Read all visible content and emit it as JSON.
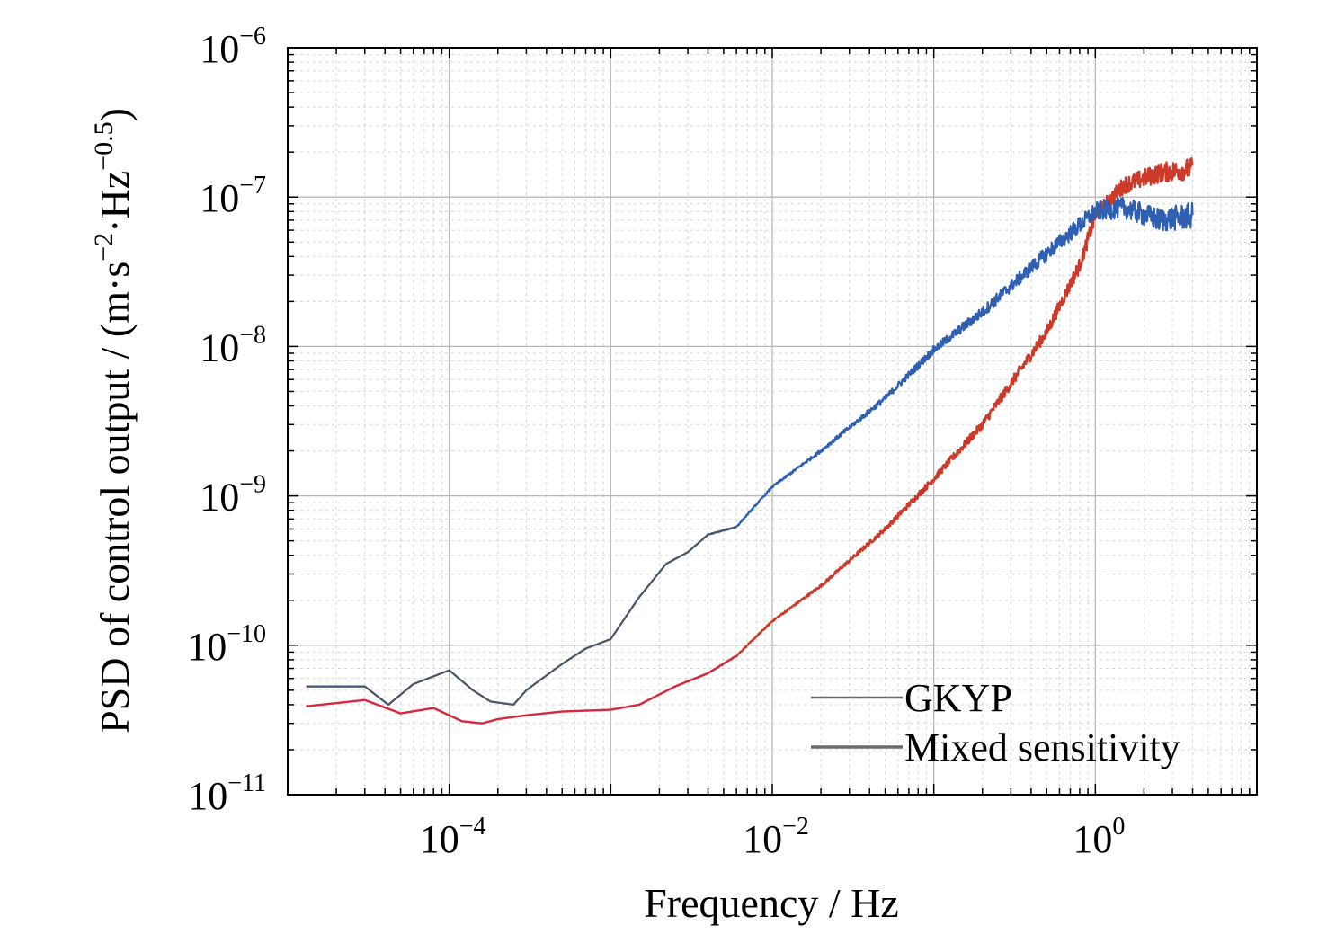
{
  "chart_data": {
    "type": "line",
    "title": "",
    "xlabel": "Frequency / Hz",
    "ylabel": "PSD of control output / (m·s⁻²·Hz⁻⁰·⁵)",
    "ylabel_parts": {
      "main": "PSD of control output / (m·s",
      "exp1": "−2",
      "mid": "·Hz",
      "exp2": "−0.5",
      "end": ")"
    },
    "xscale": "log",
    "yscale": "log",
    "xlim": [
      1e-05,
      10.0
    ],
    "ylim": [
      1e-11,
      1e-06
    ],
    "grid": true,
    "legend_position": "bottom-right",
    "x_ticks": [
      {
        "base": "10",
        "exp": "−4",
        "value": 0.0001
      },
      {
        "base": "10",
        "exp": "−2",
        "value": 0.01
      },
      {
        "base": "10",
        "exp": "0",
        "value": 1
      }
    ],
    "y_ticks": [
      {
        "base": "10",
        "exp": "−11",
        "value": 1e-11
      },
      {
        "base": "10",
        "exp": "−10",
        "value": 1e-10
      },
      {
        "base": "10",
        "exp": "−9",
        "value": 1e-09
      },
      {
        "base": "10",
        "exp": "−8",
        "value": 1e-08
      },
      {
        "base": "10",
        "exp": "−7",
        "value": 1e-07
      },
      {
        "base": "10",
        "exp": "−6",
        "value": 1e-06
      }
    ],
    "series": [
      {
        "name": "GKYP",
        "color": "#2f5fb0",
        "noise_decades": 0.22,
        "points": [
          [
            1.3e-05,
            5.3e-11
          ],
          [
            3e-05,
            5.3e-11
          ],
          [
            4.2e-05,
            4e-11
          ],
          [
            6e-05,
            5.5e-11
          ],
          [
            0.0001,
            6.8e-11
          ],
          [
            0.00014,
            5e-11
          ],
          [
            0.00018,
            4.2e-11
          ],
          [
            0.00025,
            4e-11
          ],
          [
            0.0003,
            5e-11
          ],
          [
            0.0005,
            7.5e-11
          ],
          [
            0.0007,
            9.5e-11
          ],
          [
            0.001,
            1.1e-10
          ],
          [
            0.0015,
            2.1e-10
          ],
          [
            0.0022,
            3.5e-10
          ],
          [
            0.003,
            4.2e-10
          ],
          [
            0.004,
            5.5e-10
          ],
          [
            0.006,
            6.2e-10
          ],
          [
            0.008,
            8.8e-10
          ],
          [
            0.01,
            1.15e-09
          ],
          [
            0.02,
            2e-09
          ],
          [
            0.05,
            4.5e-09
          ],
          [
            0.1,
            9.5e-09
          ],
          [
            0.2,
            1.7e-08
          ],
          [
            0.5,
            4.2e-08
          ],
          [
            1.0,
            8e-08
          ],
          [
            1.5,
            8.5e-08
          ],
          [
            2.5,
            7e-08
          ],
          [
            4.0,
            7.5e-08
          ]
        ]
      },
      {
        "name": "Mixed sensitivity",
        "color": "#cc3a2a",
        "noise_decades": 0.18,
        "points": [
          [
            1.3e-05,
            3.9e-11
          ],
          [
            3e-05,
            4.3e-11
          ],
          [
            5e-05,
            3.5e-11
          ],
          [
            8e-05,
            3.8e-11
          ],
          [
            0.00012,
            3.1e-11
          ],
          [
            0.00016,
            3e-11
          ],
          [
            0.0002,
            3.2e-11
          ],
          [
            0.0003,
            3.4e-11
          ],
          [
            0.0005,
            3.6e-11
          ],
          [
            0.001,
            3.7e-11
          ],
          [
            0.0015,
            4e-11
          ],
          [
            0.0025,
            5.3e-11
          ],
          [
            0.004,
            6.5e-11
          ],
          [
            0.006,
            8.5e-11
          ],
          [
            0.01,
            1.45e-10
          ],
          [
            0.02,
            2.5e-10
          ],
          [
            0.05,
            6e-10
          ],
          [
            0.1,
            1.3e-09
          ],
          [
            0.2,
            3e-09
          ],
          [
            0.5,
            1.25e-08
          ],
          [
            0.8,
            3.5e-08
          ],
          [
            1.0,
            7.5e-08
          ],
          [
            1.5,
            1.2e-07
          ],
          [
            2.5,
            1.45e-07
          ],
          [
            4.0,
            1.55e-07
          ]
        ]
      }
    ]
  }
}
